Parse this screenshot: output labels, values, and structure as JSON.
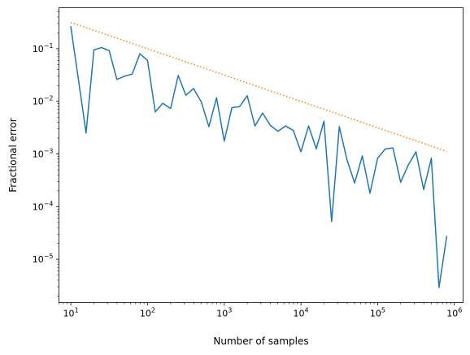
{
  "chart_data": {
    "type": "line",
    "xscale": "log",
    "yscale": "log",
    "xlabel": "Number of samples",
    "ylabel": "Fractional error",
    "xlim": [
      7,
      1300000
    ],
    "ylim": [
      1.5e-06,
      0.6
    ],
    "grid": false,
    "x_ticks": [
      {
        "value": 10,
        "base": "10",
        "exp": "1"
      },
      {
        "value": 100,
        "base": "10",
        "exp": "2"
      },
      {
        "value": 1000,
        "base": "10",
        "exp": "3"
      },
      {
        "value": 10000,
        "base": "10",
        "exp": "4"
      },
      {
        "value": 100000,
        "base": "10",
        "exp": "5"
      },
      {
        "value": 1000000,
        "base": "10",
        "exp": "6"
      }
    ],
    "y_ticks": [
      {
        "value": 1e-05,
        "base": "10",
        "exp": "−5"
      },
      {
        "value": 0.0001,
        "base": "10",
        "exp": "−4"
      },
      {
        "value": 0.001,
        "base": "10",
        "exp": "−3"
      },
      {
        "value": 0.01,
        "base": "10",
        "exp": "−2"
      },
      {
        "value": 0.1,
        "base": "10",
        "exp": "−1"
      }
    ],
    "series": [
      {
        "color": "#1f77b4",
        "style": "solid",
        "x": [
          10,
          12.6,
          15.8,
          20,
          25.1,
          31.6,
          39.8,
          50.1,
          63.1,
          79.4,
          100,
          126,
          158,
          200,
          251,
          316,
          398,
          501,
          631,
          794,
          1000,
          1259,
          1585,
          1995,
          2512,
          3162,
          3981,
          5012,
          6310,
          7943,
          10000,
          12589,
          15849,
          19953,
          25119,
          31623,
          39811,
          50119,
          63096,
          79433,
          100000,
          125893,
          158489,
          199526,
          251189,
          316228,
          398107,
          501187,
          630957,
          794328
        ],
        "y": [
          0.26,
          0.025,
          0.0025,
          0.095,
          0.105,
          0.092,
          0.026,
          0.03,
          0.033,
          0.08,
          0.06,
          0.0063,
          0.0092,
          0.0073,
          0.031,
          0.013,
          0.0175,
          0.0098,
          0.0033,
          0.0117,
          0.00175,
          0.0076,
          0.0079,
          0.0128,
          0.0034,
          0.006,
          0.0035,
          0.0027,
          0.0034,
          0.0028,
          0.0011,
          0.0034,
          0.00125,
          0.0042,
          5.2e-05,
          0.0033,
          0.00078,
          0.00028,
          0.00092,
          0.00018,
          0.00083,
          0.00125,
          0.0013,
          0.00029,
          0.00062,
          0.0011,
          0.00021,
          0.00083,
          2.9e-06,
          2.7e-05
        ]
      },
      {
        "color": "#ff7f0e",
        "style": "dotted",
        "x": [
          10,
          794328
        ],
        "y": [
          0.316,
          0.00112
        ]
      }
    ]
  }
}
